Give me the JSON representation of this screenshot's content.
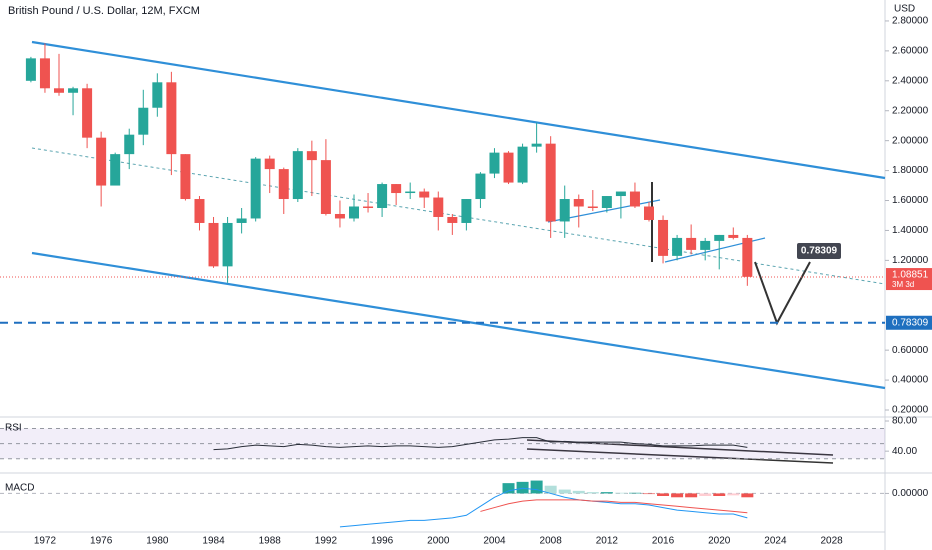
{
  "chart_data": [
    {
      "type": "candlestick",
      "title": "British Pound / U.S. Dollar, 12M, FXCM",
      "y_unit": "USD",
      "x": [
        1971,
        1972,
        1973,
        1974,
        1975,
        1976,
        1977,
        1978,
        1979,
        1980,
        1981,
        1982,
        1983,
        1984,
        1985,
        1986,
        1987,
        1988,
        1989,
        1990,
        1991,
        1992,
        1993,
        1994,
        1995,
        1996,
        1997,
        1998,
        1999,
        2000,
        2001,
        2002,
        2003,
        2004,
        2005,
        2006,
        2007,
        2008,
        2009,
        2010,
        2011,
        2012,
        2013,
        2014,
        2015,
        2016,
        2017,
        2018,
        2019,
        2020,
        2021,
        2022
      ],
      "open": [
        2.4,
        2.55,
        2.35,
        2.32,
        2.35,
        2.02,
        1.7,
        1.91,
        2.04,
        2.22,
        2.39,
        1.91,
        1.61,
        1.45,
        1.16,
        1.45,
        1.48,
        1.88,
        1.81,
        1.61,
        1.93,
        1.87,
        1.51,
        1.48,
        1.56,
        1.55,
        1.71,
        1.65,
        1.66,
        1.62,
        1.49,
        1.45,
        1.61,
        1.78,
        1.92,
        1.72,
        1.96,
        1.98,
        1.46,
        1.61,
        1.56,
        1.55,
        1.63,
        1.66,
        1.56,
        1.47,
        1.23,
        1.35,
        1.27,
        1.33,
        1.37,
        1.35
      ],
      "high": [
        2.56,
        2.65,
        2.58,
        2.36,
        2.38,
        2.06,
        1.92,
        2.08,
        2.34,
        2.45,
        2.46,
        1.91,
        1.63,
        1.49,
        1.49,
        1.55,
        1.89,
        1.9,
        1.82,
        1.95,
        2.0,
        2.01,
        1.6,
        1.64,
        1.65,
        1.72,
        1.71,
        1.72,
        1.68,
        1.66,
        1.51,
        1.61,
        1.79,
        1.95,
        1.93,
        1.98,
        2.12,
        2.03,
        1.7,
        1.64,
        1.67,
        1.63,
        1.66,
        1.72,
        1.59,
        1.5,
        1.37,
        1.44,
        1.35,
        1.37,
        1.42,
        1.37
      ],
      "low": [
        2.39,
        2.32,
        2.3,
        2.17,
        1.95,
        1.56,
        1.71,
        1.81,
        1.97,
        2.16,
        1.77,
        1.6,
        1.4,
        1.15,
        1.05,
        1.38,
        1.46,
        1.65,
        1.51,
        1.59,
        1.63,
        1.5,
        1.42,
        1.46,
        1.52,
        1.49,
        1.57,
        1.61,
        1.55,
        1.4,
        1.37,
        1.4,
        1.55,
        1.75,
        1.71,
        1.71,
        1.92,
        1.35,
        1.35,
        1.42,
        1.53,
        1.52,
        1.48,
        1.55,
        1.46,
        1.18,
        1.2,
        1.24,
        1.2,
        1.14,
        1.34,
        1.03
      ],
      "close": [
        2.55,
        2.35,
        2.32,
        2.35,
        2.02,
        1.7,
        1.91,
        2.04,
        2.22,
        2.39,
        1.91,
        1.61,
        1.45,
        1.16,
        1.45,
        1.48,
        1.88,
        1.81,
        1.61,
        1.93,
        1.87,
        1.51,
        1.48,
        1.56,
        1.55,
        1.71,
        1.65,
        1.66,
        1.62,
        1.49,
        1.45,
        1.61,
        1.78,
        1.92,
        1.72,
        1.96,
        1.98,
        1.46,
        1.61,
        1.56,
        1.55,
        1.63,
        1.66,
        1.56,
        1.47,
        1.23,
        1.35,
        1.27,
        1.33,
        1.37,
        1.35,
        1.09
      ],
      "up_color": "#26a69a",
      "down_color": "#ef5350",
      "xlim": [
        1968.8,
        2031.8
      ],
      "xticks": [
        1972,
        1976,
        1980,
        1984,
        1988,
        1992,
        1996,
        2000,
        2004,
        2008,
        2012,
        2016,
        2020,
        2024,
        2028
      ],
      "ylim": [
        0.16,
        2.94
      ],
      "yticks": [
        {
          "value": 0.2,
          "label": "0.20000"
        },
        {
          "value": 0.4,
          "label": "0.40000"
        },
        {
          "value": 0.6,
          "label": "0.60000"
        },
        {
          "value": 1.2,
          "label": "1.20000"
        },
        {
          "value": 1.4,
          "label": "1.40000"
        },
        {
          "value": 1.6,
          "label": "1.60000"
        },
        {
          "value": 1.8,
          "label": "1.80000"
        },
        {
          "value": 2.0,
          "label": "2.00000"
        },
        {
          "value": 2.2,
          "label": "2.20000"
        },
        {
          "value": 2.4,
          "label": "2.40000"
        },
        {
          "value": 2.6,
          "label": "2.60000"
        },
        {
          "value": 2.8,
          "label": "2.80000"
        }
      ],
      "last_price": {
        "value": 1.08851,
        "label": "1.08851"
      },
      "countdown": "3M 3d",
      "target": {
        "value": 0.78309,
        "label": "0.78309"
      }
    },
    {
      "type": "line",
      "title": "RSI",
      "color": "#2a2e39",
      "band_color": "#7e57c2",
      "x": [
        1984,
        1985,
        1986,
        1987,
        1988,
        1989,
        1990,
        1991,
        1992,
        1993,
        1994,
        1995,
        1996,
        1997,
        1998,
        1999,
        2000,
        2001,
        2002,
        2003,
        2004,
        2005,
        2006,
        2007,
        2008,
        2009,
        2010,
        2011,
        2012,
        2013,
        2014,
        2015,
        2016,
        2017,
        2018,
        2019,
        2020,
        2021,
        2022
      ],
      "values": [
        42,
        43,
        46,
        48,
        47,
        46,
        49,
        48,
        46,
        45,
        46,
        47,
        46,
        47,
        47,
        46,
        45,
        46,
        49,
        52,
        55,
        56,
        58,
        58,
        52,
        53,
        52,
        52,
        52,
        52,
        50,
        49,
        47,
        47,
        47,
        48,
        48,
        48,
        45
      ],
      "levels": [
        70,
        50,
        30
      ],
      "ylim": [
        15,
        84
      ],
      "yticks": [
        {
          "value": 80,
          "label": "80.00"
        },
        {
          "value": 40,
          "label": "40.00"
        }
      ]
    },
    {
      "type": "macd",
      "title": "MACD",
      "x": [
        2005,
        2006,
        2007,
        2008,
        2009,
        2010,
        2011,
        2012,
        2013,
        2014,
        2015,
        2016,
        2017,
        2018,
        2019,
        2020,
        2021,
        2022
      ],
      "values": [
        0.08,
        0.09,
        0.1,
        0.06,
        0.03,
        0.02,
        0.01,
        0.01,
        0.005,
        0.005,
        -0.005,
        -0.02,
        -0.03,
        -0.03,
        -0.02,
        -0.02,
        -0.015,
        -0.03
      ],
      "colors": {
        "up_strong": "#26a69a",
        "up_weak": "#b2dfdb",
        "down_strong": "#ef5350",
        "down_weak": "#ffcdd2"
      },
      "lines": [
        {
          "color": "#2196f3",
          "x": [
            1993,
            1994,
            1995,
            1996,
            1997,
            1998,
            1999,
            2000,
            2001,
            2002,
            2003,
            2004,
            2005,
            2006,
            2007,
            2008,
            2009,
            2010,
            2011,
            2012,
            2013,
            2014,
            2015,
            2016,
            2017,
            2018,
            2019,
            2020,
            2021,
            2022
          ],
          "values": [
            -0.26,
            -0.25,
            -0.24,
            -0.23,
            -0.22,
            -0.21,
            -0.21,
            -0.2,
            -0.19,
            -0.17,
            -0.1,
            -0.03,
            0.02,
            0.04,
            0.03,
            0.0,
            -0.03,
            -0.05,
            -0.06,
            -0.07,
            -0.08,
            -0.08,
            -0.09,
            -0.11,
            -0.13,
            -0.14,
            -0.15,
            -0.16,
            -0.16,
            -0.19
          ]
        },
        {
          "color": "#ef5350",
          "x": [
            2003,
            2004,
            2005,
            2006,
            2007,
            2008,
            2009,
            2010,
            2011,
            2012,
            2013,
            2014,
            2015,
            2016,
            2017,
            2018,
            2019,
            2020,
            2021,
            2022
          ],
          "values": [
            -0.14,
            -0.11,
            -0.08,
            -0.06,
            -0.05,
            -0.05,
            -0.05,
            -0.05,
            -0.06,
            -0.06,
            -0.07,
            -0.07,
            -0.08,
            -0.09,
            -0.1,
            -0.11,
            -0.12,
            -0.13,
            -0.14,
            -0.15
          ]
        }
      ],
      "ylim": [
        -0.3,
        0.12
      ],
      "yticks": [
        {
          "value": 0,
          "label": "0.00000"
        }
      ]
    }
  ]
}
